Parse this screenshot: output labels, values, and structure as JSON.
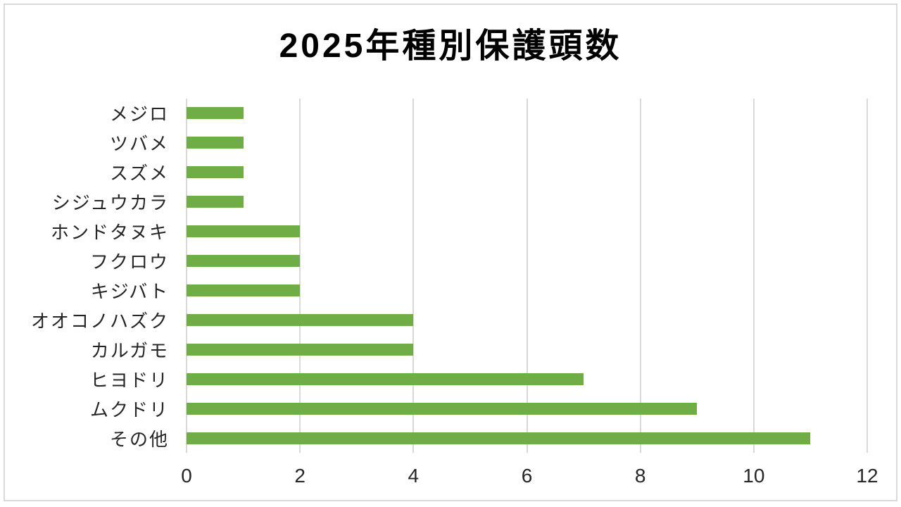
{
  "chart_data": {
    "type": "bar",
    "orientation": "horizontal",
    "title": "2025年種別保護頭数",
    "categories": [
      "メジロ",
      "ツバメ",
      "スズメ",
      "シジュウカラ",
      "ホンドタヌキ",
      "フクロウ",
      "キジバト",
      "オオコノハズク",
      "カルガモ",
      "ヒヨドリ",
      "ムクドリ",
      "その他"
    ],
    "values": [
      1,
      1,
      1,
      1,
      2,
      2,
      2,
      4,
      4,
      7,
      9,
      11
    ],
    "xlabel": "",
    "ylabel": "",
    "xlim": [
      0,
      12
    ],
    "x_ticks": [
      0,
      2,
      4,
      6,
      8,
      10,
      12
    ],
    "grid": true,
    "legend": false
  },
  "colors": {
    "bar": "#70ad47",
    "gridline": "#d9d9d9",
    "frame_border": "#d9d9d9",
    "title_text": "#000000",
    "axis_text": "#262626",
    "background": "#ffffff"
  }
}
